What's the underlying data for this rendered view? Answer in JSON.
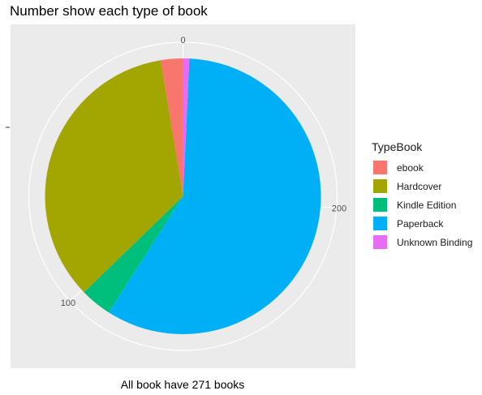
{
  "chart_data": {
    "type": "pie",
    "title": "Number show each type of book",
    "caption": "All book have 271 books",
    "legend_title": "TypeBook",
    "legend_position": "right",
    "total": 271,
    "categories": [
      "ebook",
      "Hardcover",
      "Kindle Edition",
      "Paperback",
      "Unknown Binding"
    ],
    "values": [
      7,
      94,
      10,
      158,
      2
    ],
    "colors": [
      "#F8766D",
      "#A3A500",
      "#00BF7D",
      "#00B0F6",
      "#E76BF3"
    ],
    "ticks": [
      0,
      100,
      200
    ],
    "background": "#EBEBEB",
    "grid": true
  }
}
